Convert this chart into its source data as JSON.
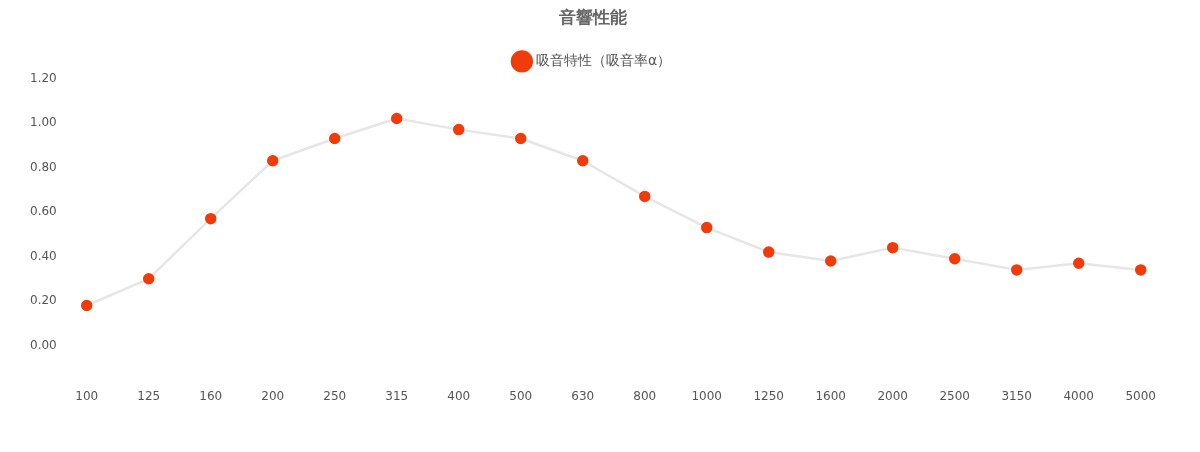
{
  "chart_data": {
    "type": "line",
    "title": "音響性能",
    "categories": [
      "100",
      "125",
      "160",
      "200",
      "250",
      "315",
      "400",
      "500",
      "630",
      "800",
      "1000",
      "1250",
      "1600",
      "2000",
      "2500",
      "3150",
      "4000",
      "5000"
    ],
    "series": [
      {
        "name": "吸音特性（吸音率α）",
        "color": "#f03c0a",
        "values": [
          0.18,
          0.3,
          0.57,
          0.83,
          0.93,
          1.02,
          0.97,
          0.93,
          0.83,
          0.67,
          0.53,
          0.42,
          0.38,
          0.44,
          0.39,
          0.34,
          0.37,
          0.34
        ]
      }
    ],
    "ylim": [
      0,
      1.2
    ],
    "yticks": [
      {
        "value": 0,
        "label": "0.00"
      },
      {
        "value": 0.2,
        "label": "0.20"
      },
      {
        "value": 0.4,
        "label": "0.40"
      },
      {
        "value": 0.6,
        "label": "0.60"
      },
      {
        "value": 0.8,
        "label": "0.80"
      },
      {
        "value": 1,
        "label": "1.00"
      },
      {
        "value": 1.2,
        "label": "1.20"
      }
    ],
    "grid": false,
    "legend": "top",
    "marker": "circle",
    "line_style": "solid"
  }
}
